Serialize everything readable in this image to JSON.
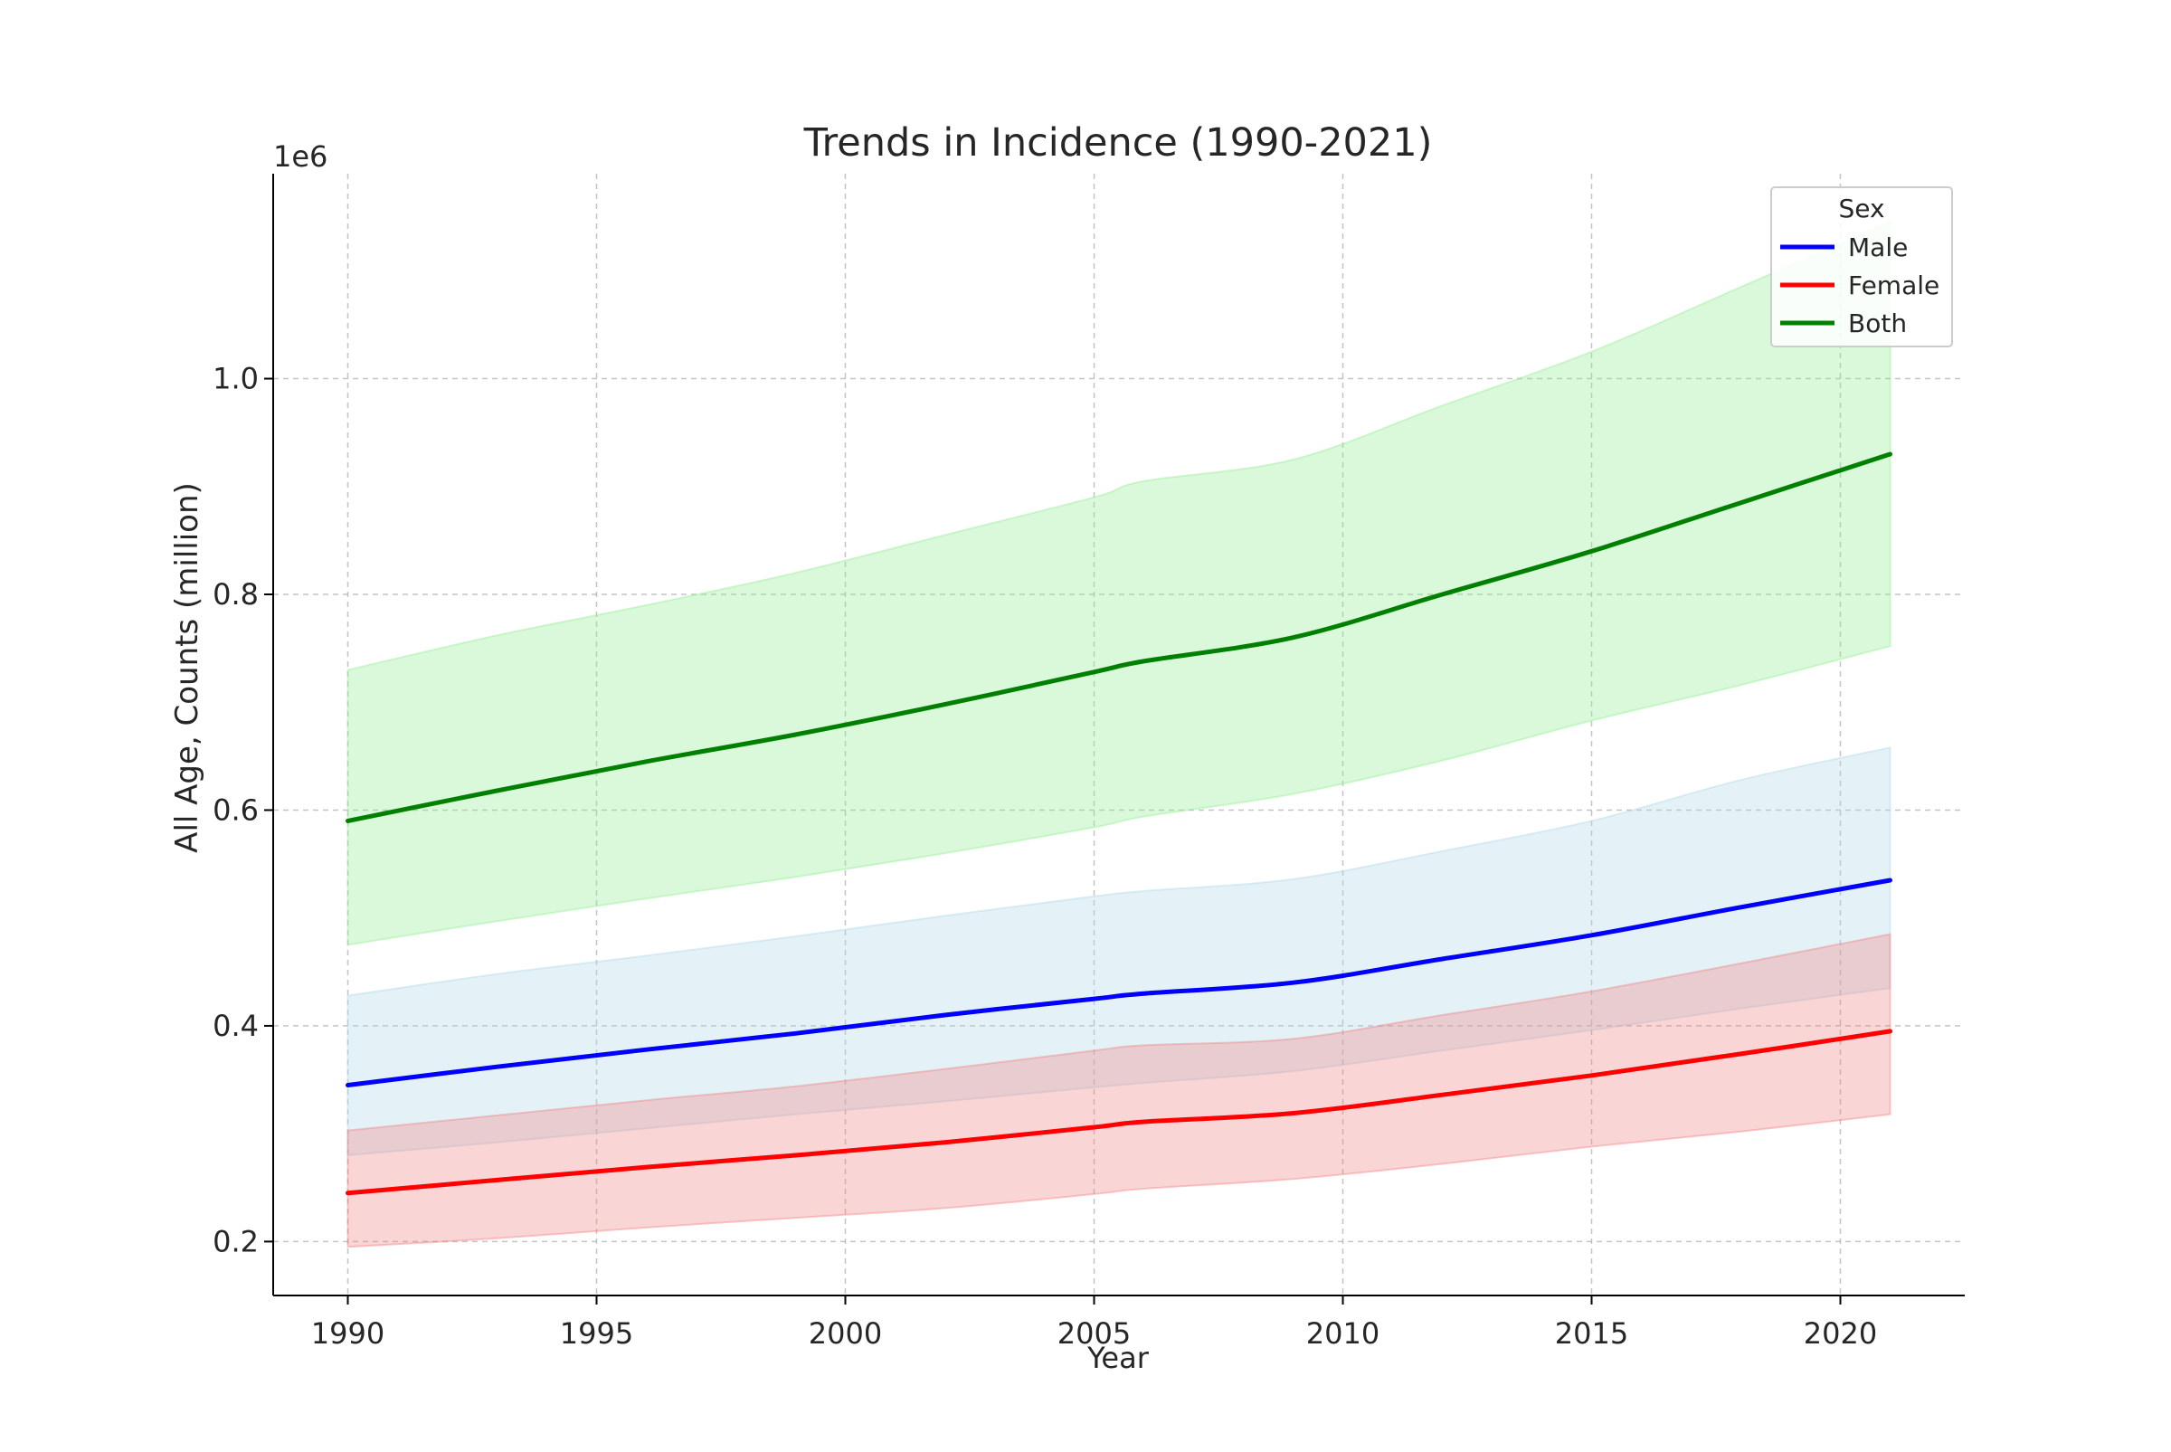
{
  "chart_data": {
    "type": "line",
    "title": "Trends in Incidence (1990-2021)",
    "xlabel": "Year",
    "ylabel": "All Age, Counts (million)",
    "y_offset_label": "1e6",
    "xlim": [
      1988.5,
      2022.5
    ],
    "ylim": [
      150000,
      1190000
    ],
    "x_ticks": [
      1990,
      1995,
      2000,
      2005,
      2010,
      2015,
      2020
    ],
    "x_tick_labels": [
      "1990",
      "1995",
      "2000",
      "2005",
      "2010",
      "2015",
      "2020"
    ],
    "y_ticks": [
      200000,
      400000,
      600000,
      800000,
      1000000
    ],
    "y_tick_labels": [
      "0.2",
      "0.4",
      "0.6",
      "0.8",
      "1.0"
    ],
    "grid": true,
    "legend": {
      "title": "Sex",
      "placement": "top-right"
    },
    "x": [
      1990,
      1993,
      1996,
      1999,
      2002,
      2005,
      2006,
      2009,
      2012,
      2015,
      2018,
      2021
    ],
    "series": [
      {
        "name": "Male",
        "color": "#0000ff",
        "band_color": "#add8e6",
        "values": [
          345000,
          362000,
          378000,
          393000,
          410000,
          425000,
          430000,
          440000,
          462000,
          484000,
          510000,
          535000
        ],
        "lower": [
          280000,
          292000,
          305000,
          318000,
          330000,
          343000,
          347000,
          358000,
          377000,
          396000,
          416000,
          435000
        ],
        "upper": [
          428000,
          448000,
          465000,
          483000,
          502000,
          520000,
          525000,
          536000,
          562000,
          590000,
          628000,
          658000
        ]
      },
      {
        "name": "Female",
        "color": "#ff0000",
        "band_color": "#f08080",
        "values": [
          245000,
          257000,
          269000,
          280000,
          292000,
          306000,
          311000,
          319000,
          336000,
          354000,
          374000,
          395000
        ],
        "lower": [
          195000,
          203000,
          213000,
          222000,
          231000,
          244000,
          249000,
          258000,
          272000,
          288000,
          302000,
          318000
        ],
        "upper": [
          303000,
          317000,
          331000,
          344000,
          360000,
          377000,
          382000,
          388000,
          410000,
          432000,
          458000,
          485000
        ]
      },
      {
        "name": "Both",
        "color": "#008000",
        "band_color": "#90ee90",
        "values": [
          590000,
          618000,
          645000,
          670000,
          698000,
          728000,
          738000,
          760000,
          800000,
          840000,
          885000,
          930000
        ],
        "lower": [
          475000,
          497000,
          518000,
          538000,
          560000,
          584000,
          594000,
          615000,
          646000,
          683000,
          716000,
          752000
        ],
        "upper": [
          730000,
          762000,
          790000,
          820000,
          855000,
          890000,
          905000,
          925000,
          975000,
          1025000,
          1085000,
          1145000
        ]
      }
    ]
  }
}
